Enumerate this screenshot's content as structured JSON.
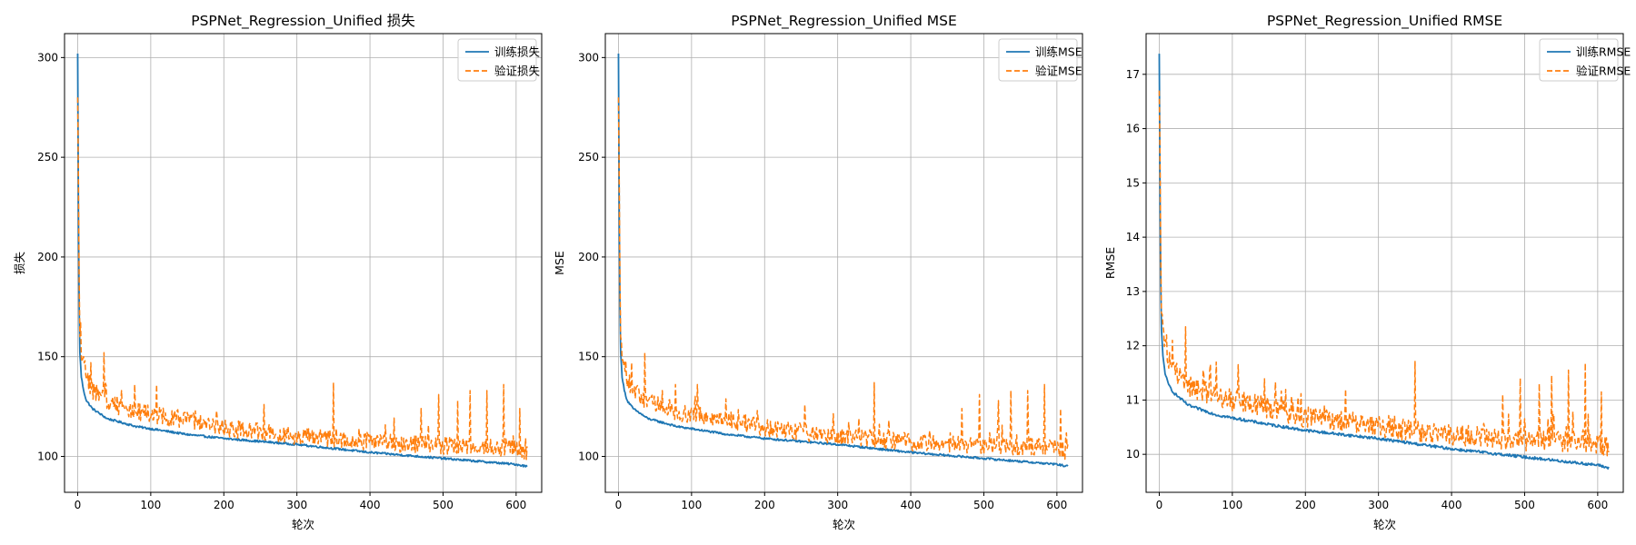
{
  "chart_data": [
    {
      "type": "line",
      "title": "PSPNet_Regression_Unified 损失",
      "xlabel": "轮次",
      "ylabel": "损失",
      "xlim": [
        -18,
        635
      ],
      "ylim": [
        82,
        312
      ],
      "xticks": [
        0,
        100,
        200,
        300,
        400,
        500,
        600
      ],
      "yticks": [
        100,
        150,
        200,
        250,
        300
      ],
      "grid": true,
      "legend_position": "top-right",
      "x_range": [
        0,
        615
      ],
      "series": [
        {
          "name": "训练损失",
          "color": "#1f77b4",
          "style": "solid",
          "anchors": [
            [
              0,
              302
            ],
            [
              1,
              222
            ],
            [
              2,
              175
            ],
            [
              3,
              152
            ],
            [
              5,
              140
            ],
            [
              8,
              133
            ],
            [
              12,
              128
            ],
            [
              20,
              124
            ],
            [
              40,
              119
            ],
            [
              80,
              115
            ],
            [
              150,
              111
            ],
            [
              200,
              109
            ],
            [
              300,
              106
            ],
            [
              400,
              102
            ],
            [
              500,
              99
            ],
            [
              600,
              96
            ],
            [
              615,
              95
            ]
          ],
          "noise": 0.5
        },
        {
          "name": "验证损失",
          "color": "#ff7f0e",
          "style": "dashed",
          "anchors": [
            [
              0,
              280
            ],
            [
              1,
              240
            ],
            [
              2,
              190
            ],
            [
              3,
              160
            ],
            [
              5,
              148
            ],
            [
              8,
              143
            ],
            [
              12,
              138
            ],
            [
              20,
              132
            ],
            [
              40,
              126
            ],
            [
              80,
              121
            ],
            [
              150,
              117
            ],
            [
              200,
              113
            ],
            [
              300,
              109
            ],
            [
              400,
              106
            ],
            [
              500,
              104
            ],
            [
              600,
              103
            ],
            [
              615,
              101
            ]
          ],
          "noise": 4,
          "spikes": [
            [
              10,
              148
            ],
            [
              18,
              147
            ],
            [
              36,
              152
            ],
            [
              60,
              133
            ],
            [
              78,
              136
            ],
            [
              108,
              136
            ],
            [
              190,
              123
            ],
            [
              255,
              126
            ],
            [
              350,
              137
            ],
            [
              470,
              124
            ],
            [
              494,
              131
            ],
            [
              520,
              128
            ],
            [
              537,
              133
            ],
            [
              560,
              133
            ],
            [
              583,
              136
            ],
            [
              605,
              124
            ]
          ]
        }
      ]
    },
    {
      "type": "line",
      "title": "PSPNet_Regression_Unified MSE",
      "xlabel": "轮次",
      "ylabel": "MSE",
      "xlim": [
        -18,
        635
      ],
      "ylim": [
        82,
        312
      ],
      "xticks": [
        0,
        100,
        200,
        300,
        400,
        500,
        600
      ],
      "yticks": [
        100,
        150,
        200,
        250,
        300
      ],
      "grid": true,
      "legend_position": "top-right",
      "x_range": [
        0,
        615
      ],
      "series": [
        {
          "name": "训练MSE",
          "color": "#1f77b4",
          "style": "solid",
          "anchors": [
            [
              0,
              302
            ],
            [
              1,
              222
            ],
            [
              2,
              175
            ],
            [
              3,
              152
            ],
            [
              5,
              140
            ],
            [
              8,
              133
            ],
            [
              12,
              128
            ],
            [
              20,
              124
            ],
            [
              40,
              119
            ],
            [
              80,
              115
            ],
            [
              150,
              111
            ],
            [
              200,
              109
            ],
            [
              300,
              106
            ],
            [
              400,
              102
            ],
            [
              500,
              99
            ],
            [
              600,
              96
            ],
            [
              615,
              95
            ]
          ],
          "noise": 0.5
        },
        {
          "name": "验证MSE",
          "color": "#ff7f0e",
          "style": "dashed",
          "anchors": [
            [
              0,
              280
            ],
            [
              1,
              240
            ],
            [
              2,
              190
            ],
            [
              3,
              160
            ],
            [
              5,
              148
            ],
            [
              8,
              143
            ],
            [
              12,
              138
            ],
            [
              20,
              132
            ],
            [
              40,
              126
            ],
            [
              80,
              121
            ],
            [
              150,
              117
            ],
            [
              200,
              113
            ],
            [
              300,
              109
            ],
            [
              400,
              106
            ],
            [
              500,
              104
            ],
            [
              600,
              103
            ],
            [
              615,
              101
            ]
          ],
          "noise": 4,
          "spikes": [
            [
              10,
              148
            ],
            [
              18,
              147
            ],
            [
              36,
              152
            ],
            [
              60,
              133
            ],
            [
              78,
              136
            ],
            [
              108,
              136
            ],
            [
              190,
              123
            ],
            [
              255,
              126
            ],
            [
              350,
              137
            ],
            [
              470,
              124
            ],
            [
              494,
              131
            ],
            [
              520,
              128
            ],
            [
              537,
              133
            ],
            [
              560,
              133
            ],
            [
              583,
              136
            ],
            [
              605,
              124
            ]
          ]
        }
      ]
    },
    {
      "type": "line",
      "title": "PSPNet_Regression_Unified RMSE",
      "xlabel": "轮次",
      "ylabel": "RMSE",
      "xlim": [
        -18,
        635
      ],
      "ylim": [
        9.3,
        17.75
      ],
      "xticks": [
        0,
        100,
        200,
        300,
        400,
        500,
        600
      ],
      "yticks": [
        10,
        11,
        12,
        13,
        14,
        15,
        16,
        17
      ],
      "grid": true,
      "legend_position": "top-right",
      "x_range": [
        0,
        615
      ],
      "series": [
        {
          "name": "训练RMSE",
          "color": "#1f77b4",
          "style": "solid",
          "anchors": [
            [
              0,
              17.38
            ],
            [
              1,
              14.9
            ],
            [
              2,
              13.2
            ],
            [
              3,
              12.3
            ],
            [
              5,
              11.8
            ],
            [
              8,
              11.5
            ],
            [
              12,
              11.3
            ],
            [
              20,
              11.13
            ],
            [
              40,
              10.9
            ],
            [
              80,
              10.72
            ],
            [
              150,
              10.55
            ],
            [
              200,
              10.44
            ],
            [
              300,
              10.29
            ],
            [
              400,
              10.1
            ],
            [
              500,
              9.95
            ],
            [
              600,
              9.8
            ],
            [
              615,
              9.75
            ]
          ],
          "noise": 0.025
        },
        {
          "name": "验证RMSE",
          "color": "#ff7f0e",
          "style": "dashed",
          "anchors": [
            [
              0,
              16.7
            ],
            [
              1,
              15.5
            ],
            [
              2,
              13.8
            ],
            [
              3,
              12.6
            ],
            [
              5,
              12.2
            ],
            [
              8,
              11.95
            ],
            [
              12,
              11.75
            ],
            [
              20,
              11.5
            ],
            [
              40,
              11.2
            ],
            [
              80,
              11.0
            ],
            [
              150,
              10.8
            ],
            [
              200,
              10.63
            ],
            [
              300,
              10.44
            ],
            [
              400,
              10.3
            ],
            [
              500,
              10.2
            ],
            [
              600,
              10.15
            ],
            [
              615,
              10.05
            ]
          ],
          "noise": 0.18,
          "spikes": [
            [
              10,
              12.2
            ],
            [
              18,
              12.1
            ],
            [
              36,
              12.35
            ],
            [
              60,
              11.55
            ],
            [
              78,
              11.7
            ],
            [
              108,
              11.65
            ],
            [
              190,
              11.05
            ],
            [
              255,
              11.2
            ],
            [
              350,
              11.72
            ],
            [
              470,
              11.1
            ],
            [
              494,
              11.4
            ],
            [
              520,
              11.3
            ],
            [
              537,
              11.45
            ],
            [
              560,
              11.55
            ],
            [
              583,
              11.68
            ],
            [
              605,
              11.15
            ]
          ]
        }
      ]
    }
  ]
}
